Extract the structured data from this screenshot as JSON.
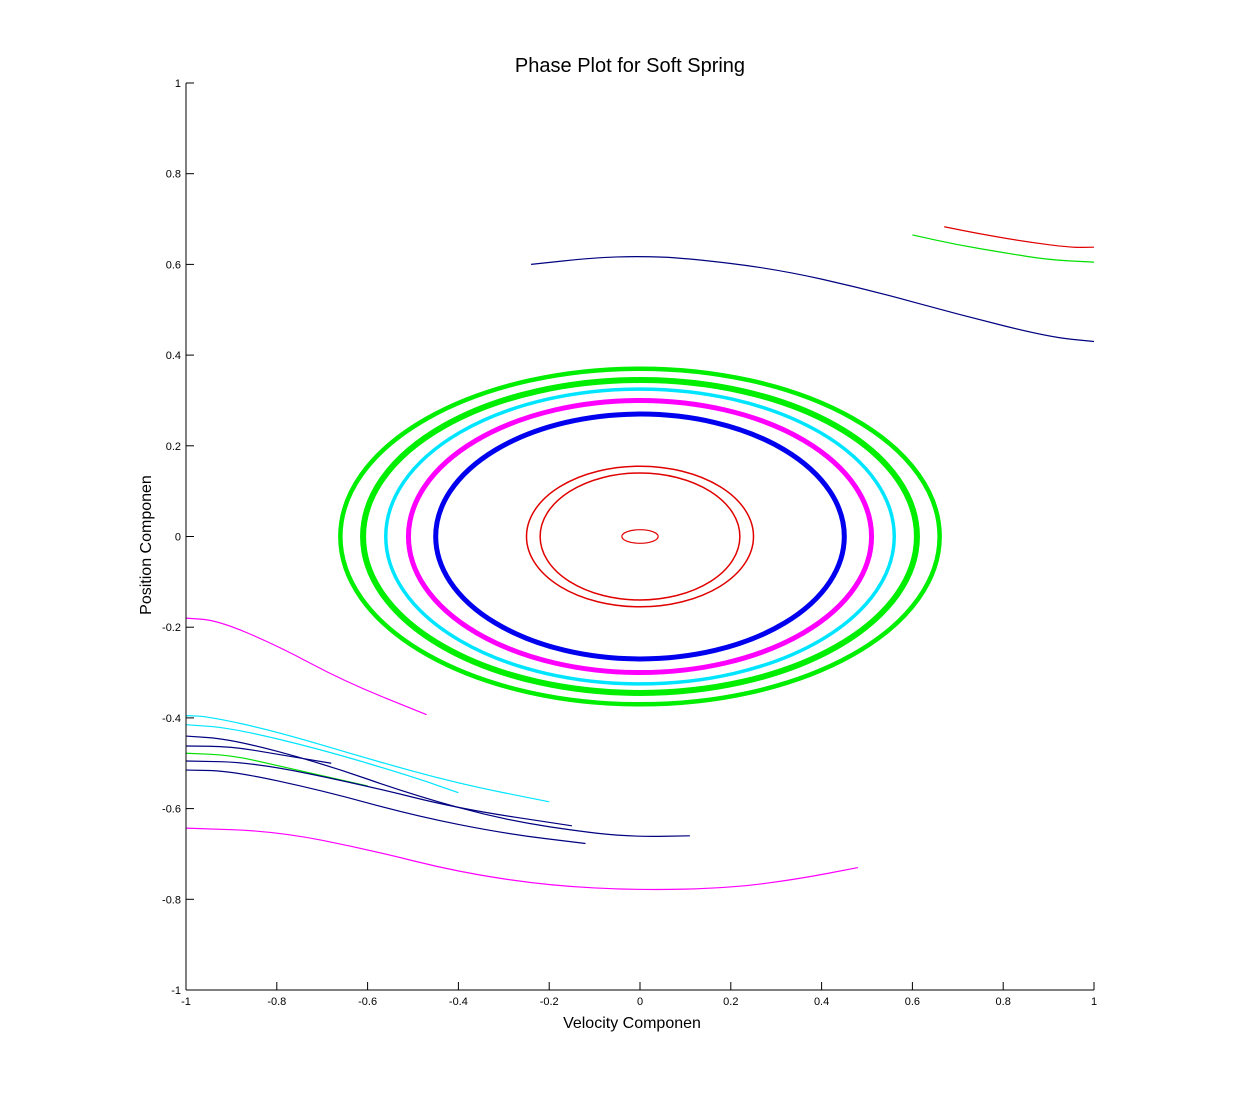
{
  "chart_data": {
    "type": "line",
    "title": "Phase Plot for Soft Spring",
    "xlabel": "Velocity Componen",
    "ylabel": "Position Componen",
    "xlim": [
      -1,
      1
    ],
    "ylim": [
      -1,
      1
    ],
    "grid": false,
    "xticks": [
      "-1",
      "-0.8",
      "-0.6",
      "-0.4",
      "-0.2",
      "0",
      "0.2",
      "0.4",
      "0.6",
      "0.8",
      "1"
    ],
    "yticks": [
      "1",
      "0.8",
      "0.6",
      "0.4",
      "0.2",
      "0",
      "-0.2",
      "-0.4",
      "-0.6",
      "-0.8",
      "-1"
    ],
    "closed_orbits": [
      {
        "color": "#e00000",
        "a": 0.04,
        "b": 0.015,
        "width": 1.2
      },
      {
        "color": "#e00000",
        "a": 0.22,
        "b": 0.14,
        "width": 1.5
      },
      {
        "color": "#e00000",
        "a": 0.25,
        "b": 0.155,
        "width": 1.5
      },
      {
        "color": "#0000ee",
        "a": 0.45,
        "b": 0.27,
        "width": 5
      },
      {
        "color": "#ff00ff",
        "a": 0.51,
        "b": 0.3,
        "width": 5
      },
      {
        "color": "#00e5ff",
        "a": 0.56,
        "b": 0.325,
        "width": 3.5
      },
      {
        "color": "#00ee00",
        "a": 0.61,
        "b": 0.345,
        "width": 6
      },
      {
        "color": "#00ee00",
        "a": 0.66,
        "b": 0.37,
        "width": 4.5
      }
    ],
    "open_trajectories": [
      {
        "color": "#000080",
        "x": [
          -0.24,
          -0.1,
          0,
          0.1,
          0.3,
          0.5,
          0.7,
          0.9,
          1.0
        ],
        "y": [
          0.6,
          0.615,
          0.618,
          0.614,
          0.59,
          0.545,
          0.49,
          0.44,
          0.43
        ]
      },
      {
        "color": "#e00000",
        "x": [
          0.67,
          0.75,
          0.85,
          0.95,
          1.0
        ],
        "y": [
          0.683,
          0.667,
          0.65,
          0.637,
          0.638
        ]
      },
      {
        "color": "#00e000",
        "x": [
          0.6,
          0.7,
          0.8,
          0.9,
          1.0
        ],
        "y": [
          0.665,
          0.643,
          0.626,
          0.61,
          0.605
        ]
      },
      {
        "color": "#ff00ff",
        "x": [
          -1.0,
          -0.93,
          -0.8,
          -0.65,
          -0.47
        ],
        "y": [
          -0.18,
          -0.185,
          -0.24,
          -0.32,
          -0.393
        ]
      },
      {
        "color": "#ff00ff",
        "x": [
          -1.0,
          -0.8,
          -0.6,
          -0.4,
          -0.2,
          0,
          0.2,
          0.35,
          0.48
        ],
        "y": [
          -0.643,
          -0.65,
          -0.69,
          -0.74,
          -0.77,
          -0.78,
          -0.775,
          -0.755,
          -0.73
        ]
      },
      {
        "color": "#00e5ff",
        "x": [
          -1.0,
          -0.95,
          -0.8,
          -0.6,
          -0.4,
          -0.2
        ],
        "y": [
          -0.395,
          -0.397,
          -0.43,
          -0.49,
          -0.545,
          -0.585
        ]
      },
      {
        "color": "#00e5ff",
        "x": [
          -1.0,
          -0.9,
          -0.7,
          -0.5,
          -0.4
        ],
        "y": [
          -0.415,
          -0.422,
          -0.47,
          -0.53,
          -0.565
        ]
      },
      {
        "color": "#000080",
        "x": [
          -1.0,
          -0.9,
          -0.7,
          -0.5,
          -0.3,
          -0.1,
          0,
          0.11
        ],
        "y": [
          -0.44,
          -0.447,
          -0.5,
          -0.57,
          -0.625,
          -0.655,
          -0.662,
          -0.66
        ]
      },
      {
        "color": "#000080",
        "x": [
          -1.0,
          -0.9,
          -0.8,
          -0.68
        ],
        "y": [
          -0.462,
          -0.463,
          -0.48,
          -0.5
        ]
      },
      {
        "color": "#00e000",
        "x": [
          -1.0,
          -0.9,
          -0.8,
          -0.6
        ],
        "y": [
          -0.478,
          -0.482,
          -0.505,
          -0.55
        ]
      },
      {
        "color": "#000080",
        "x": [
          -1.0,
          -0.85,
          -0.6,
          -0.4,
          -0.15
        ],
        "y": [
          -0.495,
          -0.498,
          -0.55,
          -0.6,
          -0.638
        ]
      },
      {
        "color": "#000080",
        "x": [
          -1.0,
          -0.9,
          -0.7,
          -0.5,
          -0.3,
          -0.12
        ],
        "y": [
          -0.515,
          -0.517,
          -0.56,
          -0.615,
          -0.655,
          -0.677
        ]
      }
    ]
  }
}
